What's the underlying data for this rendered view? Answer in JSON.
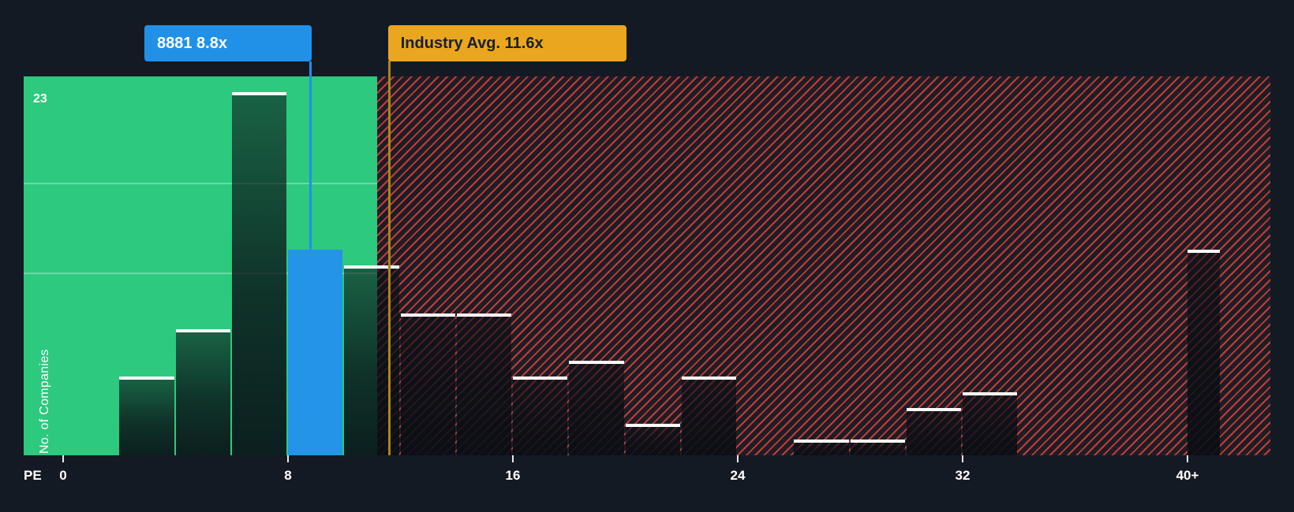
{
  "colors": {
    "background": "#141a24",
    "undervalued_zone_green": "#2dc97e",
    "overvalued_stripe_red": "#e4493e",
    "company_blue": "#2191e8",
    "industry_gold": "#eaa61e",
    "bar_cap_white": "#ffffff"
  },
  "annotations": {
    "company": {
      "label": "8881 8.8x",
      "ticker": "8881",
      "pe": 8.8
    },
    "industry": {
      "label": "Industry Avg. 11.6x",
      "pe": 11.6
    }
  },
  "axes": {
    "x_title": "PE",
    "y_title": "No. of Companies",
    "y_top_label": "23",
    "x_ticks": [
      {
        "pe": 0,
        "label": "0"
      },
      {
        "pe": 8,
        "label": "8"
      },
      {
        "pe": 16,
        "label": "16"
      },
      {
        "pe": 24,
        "label": "24"
      },
      {
        "pe": 32,
        "label": "32"
      },
      {
        "pe": 40,
        "label": "40+"
      }
    ]
  },
  "chart_data": {
    "type": "bar",
    "title": "PE ratio histogram vs industry average",
    "xlabel": "PE",
    "ylabel": "No. of Companies",
    "ylim": [
      0,
      24
    ],
    "x_range_pe": [
      0,
      41.2
    ],
    "grid": "horizontal-lines-in-green-zone",
    "legend_position": "none",
    "zones": {
      "green_to_pe": 11.17,
      "undervalued_green_pe": [
        0,
        11.17
      ],
      "overvalued_red_hatched_pe": [
        11.17,
        41.2
      ]
    },
    "company_marker": {
      "name": "8881",
      "pe": 8.8,
      "bin_count": 13
    },
    "industry_average_pe": 11.6,
    "bins": [
      {
        "pe_from": 0,
        "pe_to": 2,
        "count": 0
      },
      {
        "pe_from": 2,
        "pe_to": 4,
        "count": 5
      },
      {
        "pe_from": 4,
        "pe_to": 6,
        "count": 8
      },
      {
        "pe_from": 6,
        "pe_to": 8,
        "count": 23
      },
      {
        "pe_from": 8,
        "pe_to": 10,
        "count": 13,
        "company": true
      },
      {
        "pe_from": 10,
        "pe_to": 12,
        "count": 12
      },
      {
        "pe_from": 12,
        "pe_to": 14,
        "count": 9
      },
      {
        "pe_from": 14,
        "pe_to": 16,
        "count": 9
      },
      {
        "pe_from": 16,
        "pe_to": 18,
        "count": 5
      },
      {
        "pe_from": 18,
        "pe_to": 20,
        "count": 6
      },
      {
        "pe_from": 20,
        "pe_to": 22,
        "count": 2
      },
      {
        "pe_from": 22,
        "pe_to": 24,
        "count": 5
      },
      {
        "pe_from": 24,
        "pe_to": 26,
        "count": 0
      },
      {
        "pe_from": 26,
        "pe_to": 28,
        "count": 1
      },
      {
        "pe_from": 28,
        "pe_to": 30,
        "count": 1
      },
      {
        "pe_from": 30,
        "pe_to": 32,
        "count": 3
      },
      {
        "pe_from": 32,
        "pe_to": 34,
        "count": 4
      },
      {
        "pe_from": 34,
        "pe_to": 36,
        "count": 0
      },
      {
        "pe_from": 36,
        "pe_to": 38,
        "count": 0
      },
      {
        "pe_from": 38,
        "pe_to": 40,
        "count": 0
      },
      {
        "pe_from": 40,
        "pe_to": 41.2,
        "count": 13
      }
    ]
  }
}
